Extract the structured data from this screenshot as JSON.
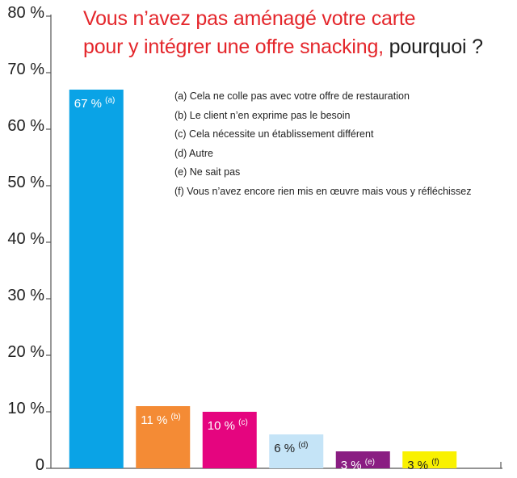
{
  "title": {
    "part1": "Vous n’avez pas aménagé votre carte",
    "part2_red": "pour y intégrer une offre snacking,",
    "part2_black": " pourquoi ?"
  },
  "legend": [
    "(a) Cela ne colle pas avec votre offre de restauration",
    "(b) Le client n’en exprime pas le besoin",
    "(c) Cela nécessite un établissement différent",
    "(d) Autre",
    "(e) Ne sait pas",
    "(f) Vous n’avez encore rien mis en œuvre mais vous y réfléchissez"
  ],
  "chart_data": {
    "type": "bar",
    "title": "Vous n’avez pas aménagé votre carte pour y intégrer une offre snacking, pourquoi ?",
    "ylim": [
      0,
      80
    ],
    "y_ticks": [
      "0",
      "10 %",
      "20 %",
      "30 %",
      "40 %",
      "50 %",
      "60 %",
      "70 %",
      "80 %"
    ],
    "grid": false,
    "legend_position": "top-right",
    "categories": [
      "(a)",
      "(b)",
      "(c)",
      "(d)",
      "(e)",
      "(f)"
    ],
    "values": [
      67,
      11,
      10,
      6,
      3,
      3
    ],
    "value_labels": [
      "67 %",
      "11 %",
      "10 %",
      "6 %",
      "3 %",
      "3 %"
    ],
    "colors": [
      "#0aa3e6",
      "#f48b35",
      "#e5057f",
      "#c5e4f7",
      "#8a1d82",
      "#f9f100"
    ],
    "label_colors": [
      "#ffffff",
      "#ffffff",
      "#ffffff",
      "#1f1f1f",
      "#ffffff",
      "#1f1f1f"
    ]
  }
}
